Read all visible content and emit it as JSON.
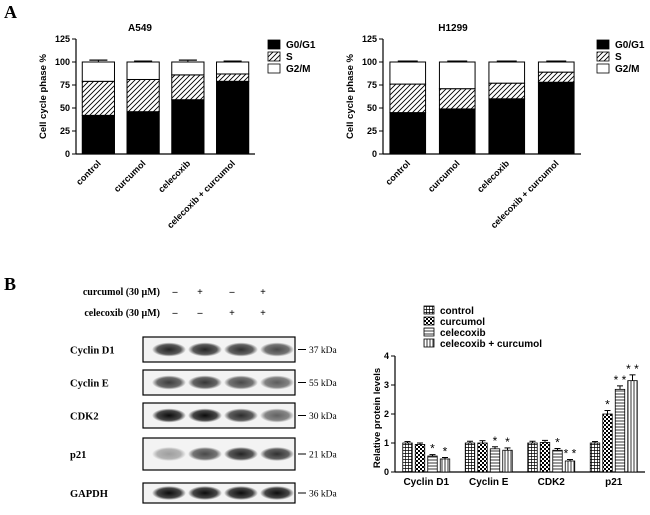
{
  "panels": {
    "a": "A",
    "b": "B"
  },
  "chart_data": [
    {
      "type": "bar",
      "stacked": true,
      "title": "A549",
      "ylabel": "Cell cycle phase %",
      "ylim": [
        0,
        125
      ],
      "yticks": [
        0,
        25,
        50,
        75,
        100,
        125
      ],
      "categories": [
        "control",
        "curcumol",
        "celecoxib",
        "celecoxib + curcumol"
      ],
      "legend_position": "right",
      "series": [
        {
          "name": "G0/G1",
          "pattern": "solid",
          "values": [
            42,
            46,
            59,
            79
          ],
          "errors": [
            2,
            2,
            2,
            2
          ]
        },
        {
          "name": "S",
          "pattern": "hatch",
          "values": [
            37,
            35,
            27,
            8
          ],
          "errors": [
            1,
            2,
            2,
            1
          ]
        },
        {
          "name": "G2/M",
          "pattern": "white",
          "values": [
            21,
            19,
            14,
            13
          ],
          "errors": [
            2,
            1,
            2,
            1
          ]
        }
      ]
    },
    {
      "type": "bar",
      "stacked": true,
      "title": "H1299",
      "ylabel": "Cell cycle phase %",
      "ylim": [
        0,
        125
      ],
      "yticks": [
        0,
        25,
        50,
        75,
        100,
        125
      ],
      "categories": [
        "control",
        "curcumol",
        "celecoxib",
        "celecoxib + curcumol"
      ],
      "legend_position": "right",
      "series": [
        {
          "name": "G0/G1",
          "pattern": "solid",
          "values": [
            45,
            49,
            60,
            78
          ],
          "errors": [
            2,
            2,
            2,
            2
          ]
        },
        {
          "name": "S",
          "pattern": "hatch",
          "values": [
            31,
            22,
            17,
            11
          ],
          "errors": [
            1,
            1,
            1,
            1
          ]
        },
        {
          "name": "G2/M",
          "pattern": "white",
          "values": [
            24,
            29,
            23,
            11
          ],
          "errors": [
            1,
            1,
            1,
            1
          ]
        }
      ]
    },
    {
      "type": "bar",
      "title": "",
      "ylabel": "Relative protein levels",
      "ylim": [
        0,
        4
      ],
      "yticks": [
        0,
        1,
        2,
        3,
        4
      ],
      "categories": [
        "Cyclin D1",
        "Cyclin E",
        "CDK2",
        "p21"
      ],
      "legend_position": "top",
      "series": [
        {
          "name": "control",
          "pattern": "grid",
          "values": [
            1.0,
            1.0,
            1.0,
            1.0
          ],
          "errors": [
            0.05,
            0.06,
            0.06,
            0.05
          ]
        },
        {
          "name": "curcumol",
          "pattern": "check",
          "values": [
            0.95,
            1.0,
            1.02,
            2.0
          ],
          "errors": [
            0.05,
            0.08,
            0.07,
            0.12
          ]
        },
        {
          "name": "celecoxib",
          "pattern": "hlines",
          "values": [
            0.55,
            0.8,
            0.75,
            2.85
          ],
          "errors": [
            0.05,
            0.07,
            0.06,
            0.12
          ]
        },
        {
          "name": "celecoxib + curcumol",
          "pattern": "vlines",
          "values": [
            0.45,
            0.75,
            0.38,
            3.15
          ],
          "errors": [
            0.05,
            0.08,
            0.05,
            0.2
          ]
        }
      ],
      "significance": [
        {
          "category": 0,
          "series": 2,
          "label": "*"
        },
        {
          "category": 0,
          "series": 3,
          "label": "*"
        },
        {
          "category": 1,
          "series": 2,
          "label": "*"
        },
        {
          "category": 1,
          "series": 3,
          "label": "*"
        },
        {
          "category": 2,
          "series": 2,
          "label": "*"
        },
        {
          "category": 2,
          "series": 3,
          "label": "* *"
        },
        {
          "category": 3,
          "series": 1,
          "label": "*"
        },
        {
          "category": 3,
          "series": 2,
          "label": "* *"
        },
        {
          "category": 3,
          "series": 3,
          "label": "* *"
        }
      ]
    }
  ],
  "western_blot": {
    "treatments": [
      {
        "label": "curcumol (30 μM)",
        "signs": [
          "–",
          "+",
          "–",
          "+"
        ]
      },
      {
        "label": "celecoxib (30 μM)",
        "signs": [
          "–",
          "–",
          "+",
          "+"
        ]
      }
    ],
    "bands": [
      {
        "protein": "Cyclin D1",
        "size": "37 kDa",
        "intensity": [
          0.85,
          0.85,
          0.8,
          0.7
        ]
      },
      {
        "protein": "Cyclin E",
        "size": "55 kDa",
        "intensity": [
          0.75,
          0.78,
          0.7,
          0.62
        ]
      },
      {
        "protein": "CDK2",
        "size": "30 kDa",
        "intensity": [
          0.95,
          0.95,
          0.82,
          0.6
        ]
      },
      {
        "protein": "p21",
        "size": "21 kDa",
        "intensity": [
          0.35,
          0.7,
          0.85,
          0.8
        ]
      },
      {
        "protein": "GAPDH",
        "size": "36 kDa",
        "intensity": [
          0.95,
          0.95,
          0.95,
          0.95
        ]
      }
    ]
  }
}
